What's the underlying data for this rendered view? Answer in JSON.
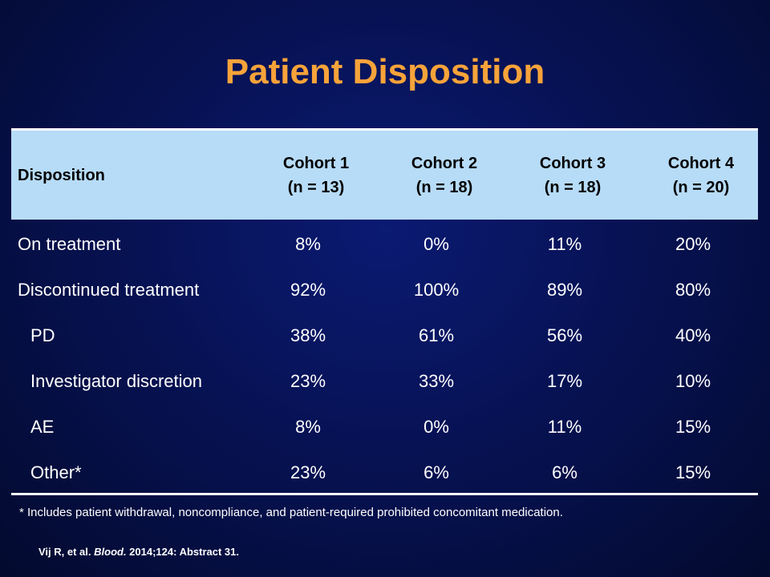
{
  "slide": {
    "title": "Patient Disposition"
  },
  "table": {
    "header": {
      "first": "Disposition",
      "columns": [
        {
          "name": "Cohort 1",
          "n": "(n = 13)"
        },
        {
          "name": "Cohort 2",
          "n": "(n = 18)"
        },
        {
          "name": "Cohort 3",
          "n": "(n = 18)"
        },
        {
          "name": "Cohort 4",
          "n": "(n = 20)"
        }
      ]
    },
    "rows": [
      {
        "label": "On treatment",
        "values": [
          "8%",
          "0%",
          "11%",
          "20%"
        ]
      },
      {
        "label": "Discontinued treatment",
        "values": [
          "92%",
          "100%",
          "89%",
          "80%"
        ]
      },
      {
        "label": "PD",
        "values": [
          "38%",
          "61%",
          "56%",
          "40%"
        ]
      },
      {
        "label": "Investigator discretion",
        "values": [
          "23%",
          "33%",
          "17%",
          "10%"
        ]
      },
      {
        "label": "AE",
        "values": [
          "8%",
          "0%",
          "11%",
          "15%"
        ]
      },
      {
        "label": "Other*",
        "values": [
          "23%",
          "6%",
          "6%",
          "15%"
        ]
      }
    ]
  },
  "footnote": "* Includes patient withdrawal,  noncompliance, and patient-required prohibited concomitant medication.",
  "citation": {
    "authors": "Vij R, et al. ",
    "journal": "Blood.",
    "details": " 2014;124: Abstract 31."
  },
  "colors": {
    "title": "#f7a33a",
    "header_band": "#b7dcf8",
    "background": "#071254"
  }
}
